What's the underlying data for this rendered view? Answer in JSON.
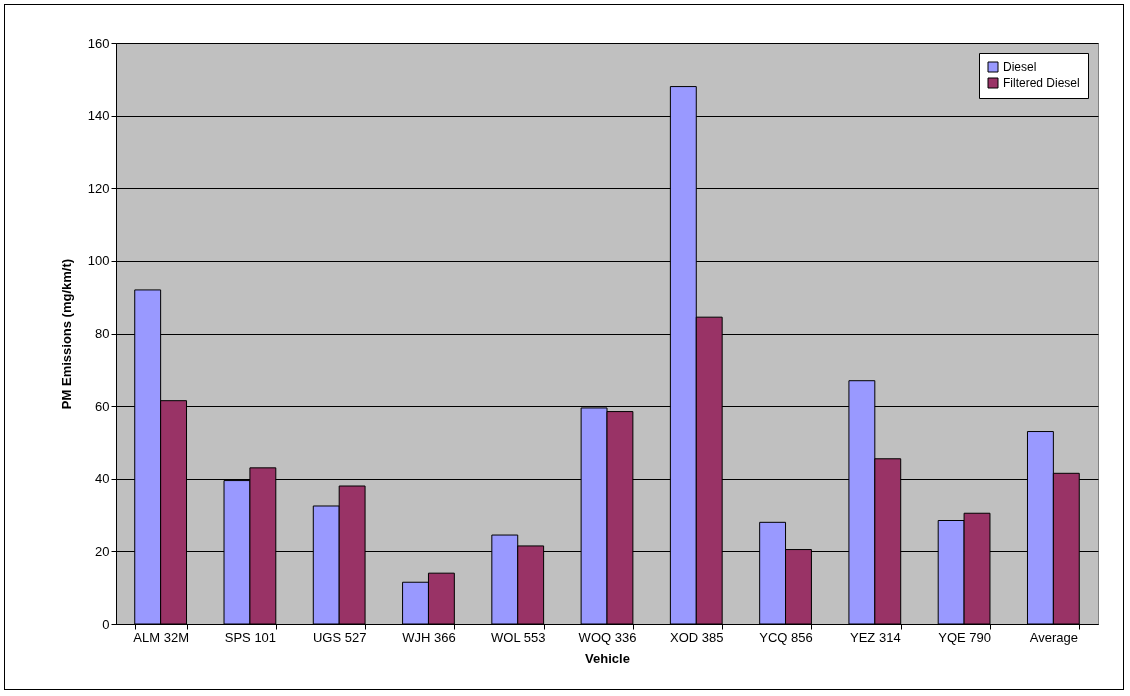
{
  "chart_data": {
    "type": "bar",
    "xlabel": "Vehicle",
    "ylabel": "PM Emissions (mg/km/t)",
    "categories": [
      "ALM 32M",
      "SPS 101",
      "UGS 527",
      "WJH 366",
      "WOL 553",
      "WOQ 336",
      "XOD 385",
      "YCQ 856",
      "YEZ 314",
      "YQE 790",
      "Average"
    ],
    "series": [
      {
        "name": "Diesel",
        "color": "#9999ff",
        "values": [
          92,
          39.5,
          32.5,
          11.5,
          24.5,
          59.5,
          148,
          28,
          67,
          28.5,
          53
        ]
      },
      {
        "name": "Filtered Diesel",
        "color": "#993366",
        "values": [
          61.5,
          43,
          38,
          14,
          21.5,
          58.5,
          84.5,
          20.5,
          45.5,
          30.5,
          41.5
        ]
      }
    ],
    "ylim": [
      0,
      160
    ],
    "yticks": [
      0,
      20,
      40,
      60,
      80,
      100,
      120,
      140,
      160
    ],
    "grid": "y",
    "legend": "top right"
  }
}
